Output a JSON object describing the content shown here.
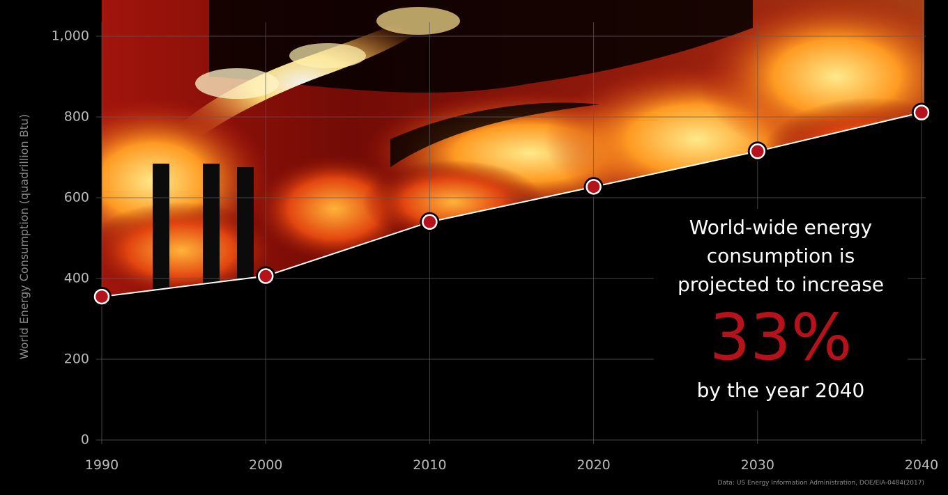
{
  "chart_data": {
    "type": "line",
    "title": "",
    "xlabel": "",
    "ylabel": "World Energy Consumption (quadrillion Btu)",
    "x": [
      1990,
      2000,
      2010,
      2020,
      2030,
      2040
    ],
    "x_tick_labels": [
      "1990",
      "2000",
      "2010",
      "2020",
      "2030",
      "2040"
    ],
    "y_tick_values": [
      0,
      200,
      400,
      600,
      800,
      1000
    ],
    "y_tick_labels": [
      "0",
      "200",
      "400",
      "600",
      "800",
      "1,000"
    ],
    "xlim": [
      1990,
      2040
    ],
    "ylim": [
      0,
      1000
    ],
    "grid": true,
    "series": [
      {
        "values": [
          355,
          406,
          540,
          627,
          715,
          811
        ]
      }
    ],
    "annotation": {
      "lines": [
        "World-wide energy",
        "consumption is",
        "projected to increase"
      ],
      "highlight": "33%",
      "footer": "by the year 2040"
    },
    "source": "Data: US Energy Information Administration, DOE/EIA-0484(2017)"
  },
  "colors": {
    "background": "#000000",
    "line": "#ffffff",
    "marker_fill": "#b5121b",
    "highlight": "#b5121b",
    "smoke_light": "#ffe066",
    "smoke_mid": "#ff8a1e",
    "smoke_dark": "#a0140c"
  }
}
